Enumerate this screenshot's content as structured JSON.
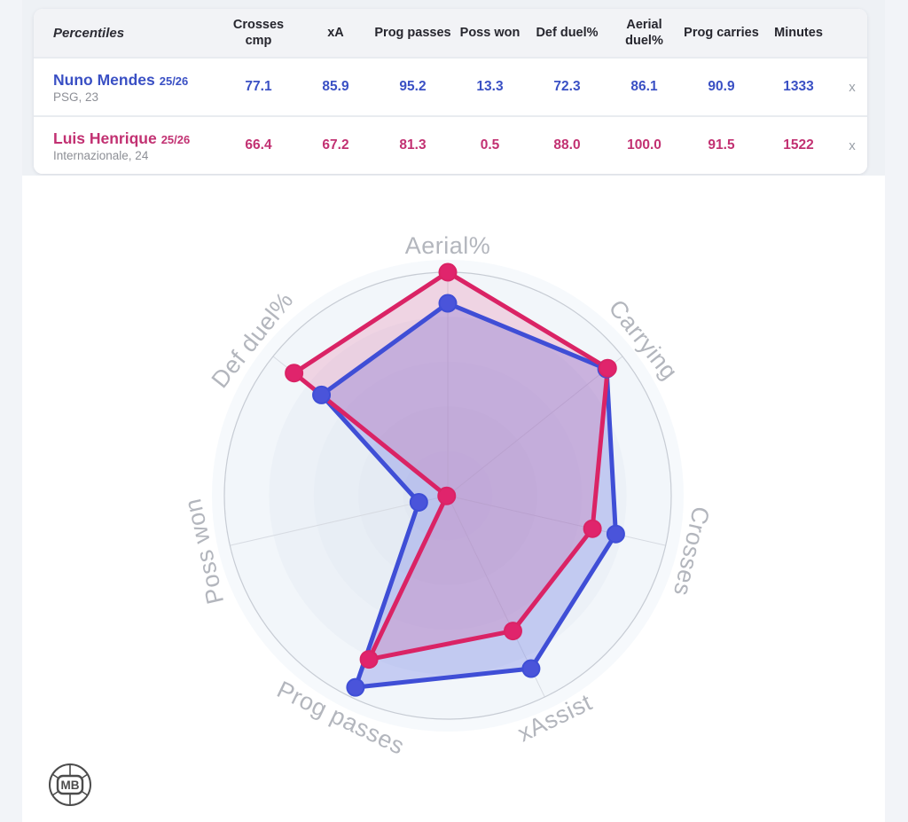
{
  "table": {
    "corner_label": "Percentiles",
    "columns": [
      "Crosses cmp",
      "xA",
      "Prog passes",
      "Poss won",
      "Def duel%",
      "Aerial duel%",
      "Prog carries",
      "Minutes"
    ],
    "remove_label": "x",
    "rows": [
      {
        "name": "Nuno Mendes",
        "season": "25/26",
        "meta": "PSG, 23",
        "color": "#3a50c4",
        "values": [
          "77.1",
          "85.9",
          "95.2",
          "13.3",
          "72.3",
          "86.1",
          "90.9",
          "1333"
        ]
      },
      {
        "name": "Luis Henrique",
        "season": "25/26",
        "meta": "Internazionale, 24",
        "color": "#c23172",
        "values": [
          "66.4",
          "67.2",
          "81.3",
          "0.5",
          "88.0",
          "100.0",
          "91.5",
          "1522"
        ]
      }
    ]
  },
  "chart_data": {
    "type": "radar",
    "title": "",
    "axes": [
      "Aerial%",
      "Carrying",
      "Crosses",
      "xAssist",
      "Prog passes",
      "Poss won",
      "Def duel%"
    ],
    "range": [
      0,
      100
    ],
    "start_angle_deg": 90,
    "direction": "clockwise",
    "grid_rings": 5,
    "series": [
      {
        "name": "Nuno Mendes 25/26",
        "color": "#3f4ed6",
        "dot_color": "#4a54da",
        "fill": "rgba(85,100,225,0.28)",
        "values": [
          86.1,
          90.9,
          77.1,
          85.9,
          95.2,
          13.3,
          72.3
        ]
      },
      {
        "name": "Luis Henrique 25/26",
        "color": "#da2365",
        "dot_color": "#e0246c",
        "fill": "rgba(224,36,110,0.16)",
        "values": [
          100.0,
          91.5,
          66.4,
          67.2,
          81.3,
          0.5,
          88.0
        ]
      }
    ],
    "axis_label_color": "#b3b6bd",
    "grid_line_color": "#d7dbe2",
    "outer_circle_color": "#c7ccd4",
    "ring_colors": [
      "#f2f6fa",
      "#ecf1f7",
      "#e8eef5",
      "#e5ebf3",
      "#e2e8f1"
    ]
  },
  "logo": {
    "text": "MB"
  }
}
